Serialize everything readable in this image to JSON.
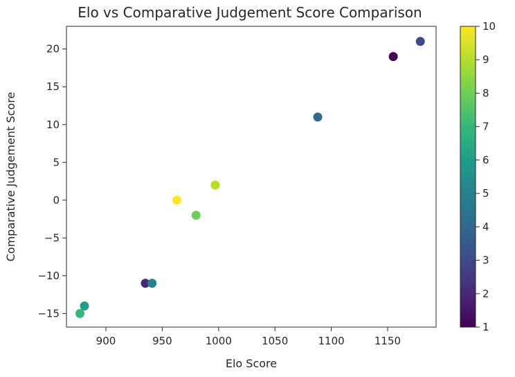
{
  "chart_data": {
    "type": "scatter",
    "title": "Elo vs Comparative Judgement Score Comparison",
    "xlabel": "Elo Score",
    "ylabel": "Comparative Judgement Score",
    "xlim": [
      865,
      1193
    ],
    "ylim": [
      -16.8,
      23.0
    ],
    "xticks": [
      900,
      950,
      1000,
      1050,
      1100,
      1150
    ],
    "yticks": [
      -15,
      -10,
      -5,
      0,
      5,
      10,
      15,
      20
    ],
    "grid": false,
    "colormap": "viridis",
    "colorbar": {
      "min": 1,
      "max": 10,
      "ticks": [
        1,
        2,
        3,
        4,
        5,
        6,
        7,
        8,
        9,
        10
      ]
    },
    "points": [
      {
        "x": 1155,
        "y": 19,
        "c": 1
      },
      {
        "x": 935,
        "y": -11,
        "c": 2
      },
      {
        "x": 1179,
        "y": 21,
        "c": 3
      },
      {
        "x": 1088,
        "y": 11,
        "c": 4
      },
      {
        "x": 941,
        "y": -11,
        "c": 5
      },
      {
        "x": 881,
        "y": -14,
        "c": 6
      },
      {
        "x": 877,
        "y": -15,
        "c": 7
      },
      {
        "x": 980,
        "y": -2,
        "c": 8
      },
      {
        "x": 997,
        "y": 2,
        "c": 9
      },
      {
        "x": 963,
        "y": 0,
        "c": 10
      }
    ]
  }
}
